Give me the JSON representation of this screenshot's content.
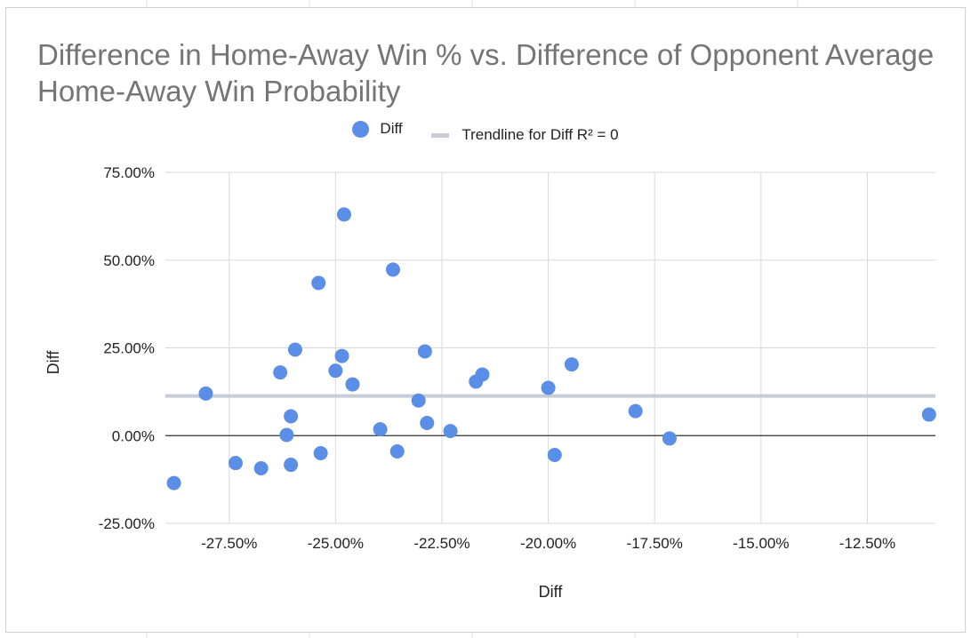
{
  "chart_data": {
    "type": "scatter",
    "title": "Difference in Home-Away Win % vs. Difference of Opponent Average Home-Away Win Probability",
    "xlabel": "Diff",
    "ylabel": "Diff",
    "xlim": [
      -29.0,
      -10.9
    ],
    "ylim": [
      -25,
      75
    ],
    "x_ticks": [
      "-27.50%",
      "-25.00%",
      "-22.50%",
      "-20.00%",
      "-17.50%",
      "-15.00%",
      "-12.50%"
    ],
    "x_tick_values": [
      -27.5,
      -25.0,
      -22.5,
      -20.0,
      -17.5,
      -15.0,
      -12.5
    ],
    "y_ticks": [
      "75.00%",
      "50.00%",
      "25.00%",
      "0.00%",
      "-25.00%"
    ],
    "y_tick_values": [
      75,
      50,
      25,
      0,
      -25
    ],
    "legend": {
      "placement": "top",
      "series_label": "Diff",
      "trend_label": "Trendline for Diff R² = 0"
    },
    "series": [
      {
        "name": "Diff",
        "color": "#5b8ee6",
        "points": [
          {
            "x": -28.8,
            "y": -13.5
          },
          {
            "x": -28.05,
            "y": 12.0
          },
          {
            "x": -27.35,
            "y": -7.8
          },
          {
            "x": -26.75,
            "y": -9.3
          },
          {
            "x": -26.3,
            "y": 18.0
          },
          {
            "x": -26.15,
            "y": 0.2
          },
          {
            "x": -26.05,
            "y": 5.5
          },
          {
            "x": -26.05,
            "y": -8.3
          },
          {
            "x": -25.95,
            "y": 24.5
          },
          {
            "x": -25.4,
            "y": 43.5
          },
          {
            "x": -25.35,
            "y": -5.0
          },
          {
            "x": -25.0,
            "y": 18.5
          },
          {
            "x": -24.85,
            "y": 22.7
          },
          {
            "x": -24.8,
            "y": 63.0
          },
          {
            "x": -24.6,
            "y": 14.6
          },
          {
            "x": -23.95,
            "y": 1.8
          },
          {
            "x": -23.65,
            "y": 47.3
          },
          {
            "x": -23.55,
            "y": -4.5
          },
          {
            "x": -23.05,
            "y": 10.0
          },
          {
            "x": -22.9,
            "y": 24.0
          },
          {
            "x": -22.85,
            "y": 3.6
          },
          {
            "x": -22.3,
            "y": 1.3
          },
          {
            "x": -21.7,
            "y": 15.4
          },
          {
            "x": -21.55,
            "y": 17.4
          },
          {
            "x": -20.0,
            "y": 13.6
          },
          {
            "x": -19.85,
            "y": -5.5
          },
          {
            "x": -19.45,
            "y": 20.3
          },
          {
            "x": -17.95,
            "y": 7.0
          },
          {
            "x": -17.15,
            "y": -0.8
          },
          {
            "x": -11.05,
            "y": 6.0
          }
        ]
      }
    ],
    "trendline": {
      "name": "Trendline for Diff",
      "y": 11.3,
      "r_squared": 0,
      "color": "#c8ccd6"
    },
    "grid": true
  }
}
